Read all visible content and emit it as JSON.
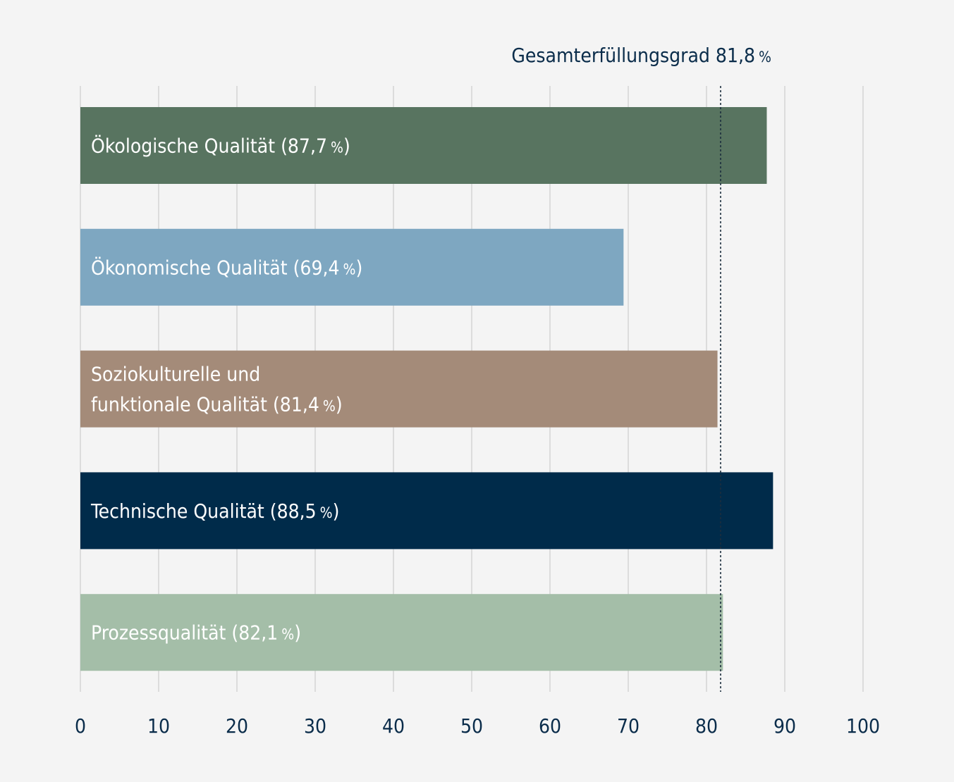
{
  "chart_data": {
    "type": "bar",
    "orientation": "horizontal",
    "xlim": [
      0,
      100
    ],
    "ticks": [
      "0",
      "10",
      "20",
      "30",
      "40",
      "50",
      "60",
      "70",
      "80",
      "90",
      "100"
    ],
    "grid": true,
    "reference": {
      "value": 81.8,
      "text": "Gesamterfüllungsgrad 81,8",
      "unit": "%"
    },
    "bars": [
      {
        "category": "Ökologische Qualität",
        "value": 87.7,
        "lines": [
          "Ökologische Qualität (87,7"
        ],
        "suffix": "%)",
        "color": "#587460",
        "text_color": "#ffffff"
      },
      {
        "category": "Ökonomische Qualität",
        "value": 69.4,
        "lines": [
          "Ökonomische Qualität (69,4"
        ],
        "suffix": "%)",
        "color": "#7ea7c1",
        "text_color": "#ffffff"
      },
      {
        "category": "Soziokulturelle und funktionale Qualität",
        "value": 81.4,
        "lines": [
          "Soziokulturelle und",
          "funktionale Qualität (81,4"
        ],
        "suffix": "%)",
        "color": "#a48b79",
        "text_color": "#ffffff"
      },
      {
        "category": "Technische Qualität",
        "value": 88.5,
        "lines": [
          "Technische Qualität (88,5"
        ],
        "suffix": "%)",
        "color": "#002b4a",
        "text_color": "#ffffff"
      },
      {
        "category": "Prozessqualität",
        "value": 82.1,
        "lines": [
          "Prozessqualität (82,1"
        ],
        "suffix": "%)",
        "color": "#a4bea8",
        "text_color": "#ffffff"
      }
    ]
  }
}
